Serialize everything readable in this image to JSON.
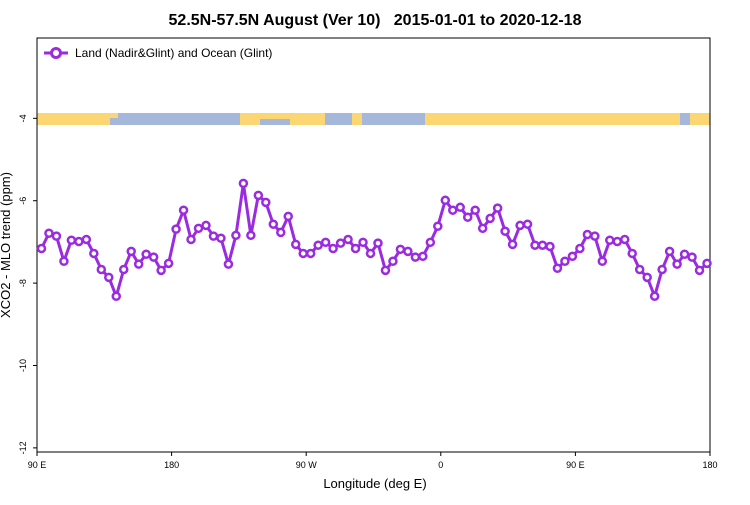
{
  "chart_data": {
    "type": "line",
    "title": "52.5N-57.5N August (Ver 10)   2015-01-01 to 2020-12-18",
    "x_label": "Longitude (deg E)",
    "y_label": "XCO2 - MLO trend (ppm)",
    "x": [
      93,
      98,
      103,
      108,
      113,
      118,
      123,
      128,
      133,
      138,
      143,
      148,
      153,
      158,
      163,
      168,
      173,
      178,
      183,
      188,
      193,
      198,
      203,
      208,
      213,
      218,
      223,
      228,
      233,
      238,
      243,
      248,
      253,
      258,
      263,
      268,
      273,
      278,
      283,
      288,
      293,
      298,
      303,
      308,
      313,
      318,
      323,
      328,
      333,
      338,
      343,
      348,
      353,
      358,
      363,
      368,
      373,
      378,
      383,
      388,
      393,
      398,
      403,
      408,
      413,
      418,
      423,
      428,
      433,
      438,
      443,
      448,
      453,
      458,
      463,
      468,
      473,
      478,
      483,
      488,
      493,
      498,
      503,
      508,
      513,
      518,
      523,
      528,
      533,
      538
    ],
    "series": [
      {
        "name": "Land (Nadir&Glint) and Ocean (Glint)",
        "color": "#9b2be0",
        "values": [
          -7.16,
          -6.79,
          -6.86,
          -7.47,
          -6.96,
          -6.99,
          -6.94,
          -7.28,
          -7.67,
          -7.86,
          -8.32,
          -7.67,
          -7.23,
          -7.54,
          -7.3,
          -7.37,
          -7.69,
          -7.52,
          -6.69,
          -6.23,
          -6.94,
          -6.67,
          -6.6,
          -6.86,
          -6.91,
          -7.54,
          -6.84,
          -5.58,
          -6.84,
          -5.87,
          -6.04,
          -6.57,
          -6.77,
          -6.38,
          -7.06,
          -7.28,
          -7.28,
          -7.08,
          -7.01,
          -7.16,
          -7.03,
          -6.94,
          -7.16,
          -7.01,
          -7.28,
          -7.03,
          -7.69,
          -7.47,
          -7.18,
          -7.23,
          -7.37,
          -7.35,
          -7.01,
          -6.62,
          -5.99,
          -6.23,
          -6.16,
          -6.4,
          -6.23,
          -6.67,
          -6.43,
          -6.18,
          -6.74,
          -7.06,
          -6.6,
          -6.57,
          -7.08,
          -7.08,
          -7.11,
          -7.64,
          -7.47,
          -7.35,
          -7.16,
          -6.82,
          -6.86,
          -7.47,
          -6.96,
          -6.99,
          -6.94,
          -7.28,
          -7.67,
          -7.86,
          -8.32,
          -7.67,
          -7.23,
          -7.54,
          -7.3,
          -7.37,
          -7.69,
          -7.52
        ]
      }
    ],
    "xlim": [
      90,
      540
    ],
    "ylim": [
      -12.1,
      -2.05
    ],
    "xticks": [
      {
        "value": 90,
        "label": "90 E"
      },
      {
        "value": 180,
        "label": "180"
      },
      {
        "value": 270,
        "label": "90 W"
      },
      {
        "value": 360,
        "label": "0"
      },
      {
        "value": 450,
        "label": "90 E"
      },
      {
        "value": 540,
        "label": "180"
      }
    ],
    "yticks": [
      -12,
      -10,
      -8,
      -6,
      -4
    ],
    "legend": "upper left"
  }
}
